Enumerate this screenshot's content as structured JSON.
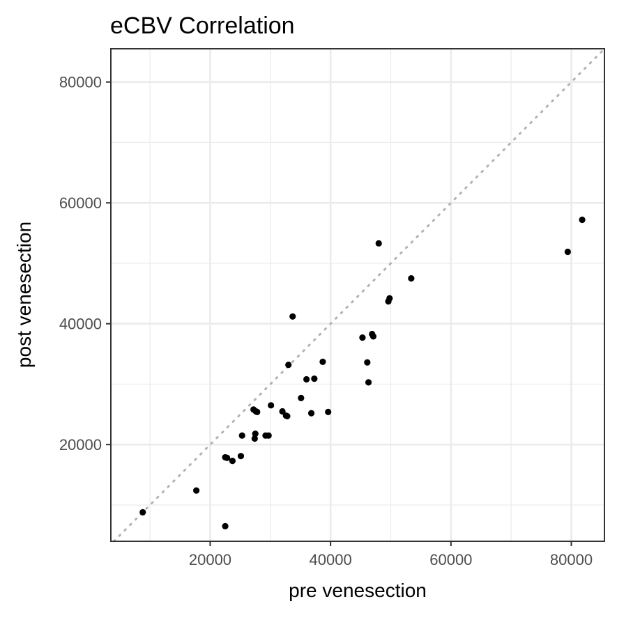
{
  "chart_data": {
    "type": "scatter",
    "title": "eCBV   Correlation",
    "xlabel": "pre venesection",
    "ylabel": "post venesection",
    "xlim": [
      3500,
      85500
    ],
    "ylim": [
      4000,
      85500
    ],
    "x_ticks": [
      20000,
      40000,
      60000,
      80000
    ],
    "x_tick_labels": [
      "20000",
      "40000",
      "60000",
      "80000"
    ],
    "y_ticks": [
      20000,
      40000,
      60000,
      80000
    ],
    "y_tick_labels": [
      "20000",
      "40000",
      "60000",
      "80000"
    ],
    "grid": true,
    "legend": "none",
    "reference_line": {
      "kind": "identity",
      "style": "dotted",
      "color": "#b3b3b3"
    },
    "point_color": "#000000",
    "points": [
      [
        8800,
        8800
      ],
      [
        17700,
        12400
      ],
      [
        22500,
        6500
      ],
      [
        22500,
        17900
      ],
      [
        22800,
        17800
      ],
      [
        23700,
        17300
      ],
      [
        25100,
        18100
      ],
      [
        25300,
        21500
      ],
      [
        27200,
        25800
      ],
      [
        27400,
        21000
      ],
      [
        27500,
        21800
      ],
      [
        27600,
        25500
      ],
      [
        27800,
        25400
      ],
      [
        29200,
        21500
      ],
      [
        29700,
        21500
      ],
      [
        30100,
        26500
      ],
      [
        32000,
        25500
      ],
      [
        32600,
        24800
      ],
      [
        32800,
        24700
      ],
      [
        33000,
        33200
      ],
      [
        33700,
        41200
      ],
      [
        35100,
        27700
      ],
      [
        36000,
        30800
      ],
      [
        36800,
        25200
      ],
      [
        37300,
        30900
      ],
      [
        38700,
        33700
      ],
      [
        39600,
        25400
      ],
      [
        45300,
        37700
      ],
      [
        46100,
        33600
      ],
      [
        46300,
        30300
      ],
      [
        46900,
        38300
      ],
      [
        47100,
        37900
      ],
      [
        48000,
        53300
      ],
      [
        49600,
        43700
      ],
      [
        49800,
        44200
      ],
      [
        53400,
        47500
      ],
      [
        79400,
        51900
      ],
      [
        81800,
        57200
      ]
    ]
  }
}
